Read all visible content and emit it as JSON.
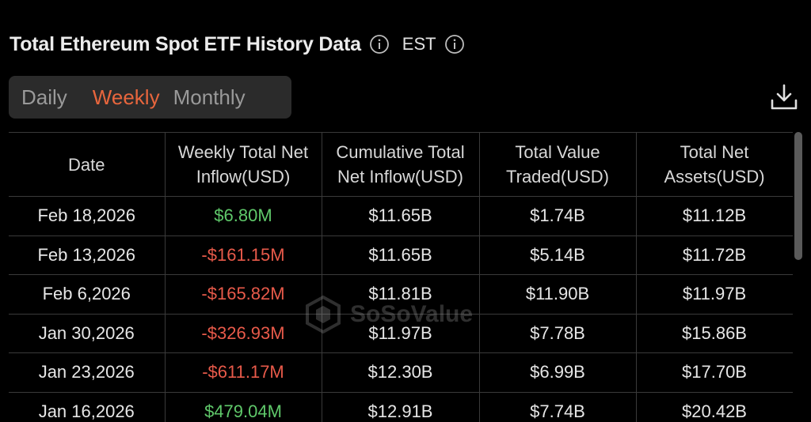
{
  "header": {
    "title": "Total Ethereum Spot ETF History Data",
    "timezone": "EST"
  },
  "tabs": [
    {
      "label": "Daily",
      "active": false
    },
    {
      "label": "Weekly",
      "active": true
    },
    {
      "label": "Monthly",
      "active": false
    }
  ],
  "table": {
    "headers": [
      "Date",
      "Weekly Total Net Inflow(USD)",
      "Cumulative Total Net Inflow(USD)",
      "Total Value Traded(USD)",
      "Total Net Assets(USD)"
    ],
    "rows": [
      {
        "date": "Feb 18,2026",
        "inflow": "$6.80M",
        "inflow_sign": "pos",
        "cumulative": "$11.65B",
        "traded": "$1.74B",
        "assets": "$11.12B"
      },
      {
        "date": "Feb 13,2026",
        "inflow": "-$161.15M",
        "inflow_sign": "neg",
        "cumulative": "$11.65B",
        "traded": "$5.14B",
        "assets": "$11.72B"
      },
      {
        "date": "Feb 6,2026",
        "inflow": "-$165.82M",
        "inflow_sign": "neg",
        "cumulative": "$11.81B",
        "traded": "$11.90B",
        "assets": "$11.97B"
      },
      {
        "date": "Jan 30,2026",
        "inflow": "-$326.93M",
        "inflow_sign": "neg",
        "cumulative": "$11.97B",
        "traded": "$7.78B",
        "assets": "$15.86B"
      },
      {
        "date": "Jan 23,2026",
        "inflow": "-$611.17M",
        "inflow_sign": "neg",
        "cumulative": "$12.30B",
        "traded": "$6.99B",
        "assets": "$17.70B"
      },
      {
        "date": "Jan 16,2026",
        "inflow": "$479.04M",
        "inflow_sign": "pos",
        "cumulative": "$12.91B",
        "traded": "$7.74B",
        "assets": "$20.42B"
      }
    ]
  },
  "watermark": {
    "text": "SoSoValue"
  },
  "colors": {
    "accent": "#e8663d",
    "positive": "#5fc86a",
    "negative": "#e85a4a",
    "background": "#000000"
  },
  "icons": {
    "info": "info-icon",
    "download": "download-icon",
    "logo": "sosovalue-logo-icon"
  }
}
